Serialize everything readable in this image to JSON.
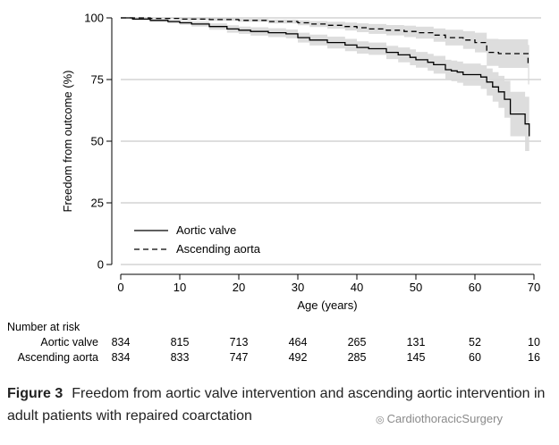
{
  "chart_data": {
    "type": "line",
    "xlabel": "Age (years)",
    "ylabel": "Freedom from outcome (%)",
    "xlim": [
      0,
      70
    ],
    "ylim": [
      0,
      100
    ],
    "x_ticks": [
      0,
      10,
      20,
      30,
      40,
      50,
      60,
      70
    ],
    "y_ticks": [
      0,
      25,
      50,
      75,
      100
    ],
    "grid": "horizontal",
    "legend_position": "bottom-left",
    "series": [
      {
        "name": "Aortic valve",
        "line_style": "solid",
        "x": [
          0,
          2,
          5,
          8,
          10,
          12,
          15,
          18,
          20,
          22,
          25,
          28,
          30,
          32,
          35,
          38,
          40,
          42,
          45,
          47,
          49,
          50,
          52,
          53,
          55,
          56,
          57,
          58,
          59,
          60,
          61,
          62,
          63,
          64,
          65,
          66,
          67,
          68,
          68.5,
          69,
          69.2
        ],
        "y": [
          100,
          99.5,
          99,
          98.5,
          98,
          97.5,
          96.5,
          95.5,
          95,
          94.5,
          94,
          93.5,
          92,
          91,
          90,
          89,
          88,
          87.5,
          86,
          85,
          84,
          83,
          82,
          81,
          79,
          78.5,
          78,
          77,
          77,
          77,
          76,
          74,
          72,
          70,
          67,
          61,
          61,
          61,
          57,
          57,
          52
        ],
        "ci_upper": [
          100,
          99.8,
          99.5,
          99.2,
          98.8,
          98.5,
          97.8,
          97,
          96.5,
          96.2,
          95.8,
          95.3,
          94,
          93.2,
          92.4,
          91.5,
          90.5,
          90,
          88.7,
          88,
          87.2,
          86.2,
          85.4,
          84.6,
          83,
          82.7,
          82.3,
          81.5,
          81.5,
          81.5,
          80.8,
          79.5,
          78,
          76.5,
          74.5,
          70,
          70,
          70,
          68,
          68,
          64
        ],
        "ci_lower": [
          100,
          99.2,
          98.4,
          97.8,
          97.2,
          96.5,
          95.2,
          94,
          93.5,
          92.8,
          92.2,
          91.7,
          90,
          88.8,
          87.6,
          86.5,
          85.5,
          85,
          83.3,
          82,
          80.8,
          79.8,
          78.6,
          77.4,
          75,
          74.3,
          73.7,
          72.5,
          72.5,
          72.5,
          71.2,
          68.5,
          66,
          63.5,
          59.5,
          52,
          52,
          52,
          46,
          46,
          38
        ]
      },
      {
        "name": "Ascending aorta",
        "line_style": "dashed",
        "x": [
          0,
          5,
          10,
          15,
          20,
          25,
          30,
          32,
          35,
          38,
          40,
          42,
          45,
          48,
          50,
          53,
          55,
          58,
          60,
          62,
          64,
          66,
          68,
          69,
          69.2
        ],
        "y": [
          100,
          99.8,
          99.5,
          99.3,
          99,
          98.5,
          98,
          97.5,
          97,
          96.5,
          96,
          95.5,
          95,
          94.5,
          94,
          93,
          92,
          91,
          90,
          86,
          85.5,
          85.5,
          85.5,
          81,
          81
        ],
        "ci_upper": [
          100,
          100,
          99.9,
          99.8,
          99.6,
          99.3,
          99,
          98.7,
          98.4,
          98.1,
          97.8,
          97.5,
          97.1,
          96.8,
          96.4,
          95.7,
          95.2,
          94.6,
          94,
          91.5,
          91.3,
          91.3,
          91.3,
          89,
          89
        ],
        "ci_lower": [
          100,
          99.6,
          99.1,
          98.8,
          98.4,
          97.7,
          97,
          96.3,
          95.6,
          94.9,
          94.2,
          93.5,
          92.9,
          92.2,
          91.6,
          90.3,
          88.8,
          87.4,
          86,
          80.5,
          79.7,
          79.7,
          79.7,
          73,
          73
        ]
      }
    ]
  },
  "risk_table": {
    "title": "Number at risk",
    "rows": [
      {
        "label": "Aortic valve",
        "values": [
          "834",
          "815",
          "713",
          "464",
          "265",
          "131",
          "52",
          "10"
        ]
      },
      {
        "label": "Ascending aorta",
        "values": [
          "834",
          "833",
          "747",
          "492",
          "285",
          "145",
          "60",
          "16"
        ]
      }
    ]
  },
  "caption": {
    "label": "Figure 3",
    "text": "Freedom from aortic valve intervention and ascending aortic intervention in adult patients with repaired coarctation"
  },
  "watermark": {
    "icon": "wechat-icon",
    "text": "CardiothoracicSurgery"
  },
  "colors": {
    "line": "#000000",
    "ci_band": "#d9d9d9",
    "grid": "#bdbdbd"
  }
}
